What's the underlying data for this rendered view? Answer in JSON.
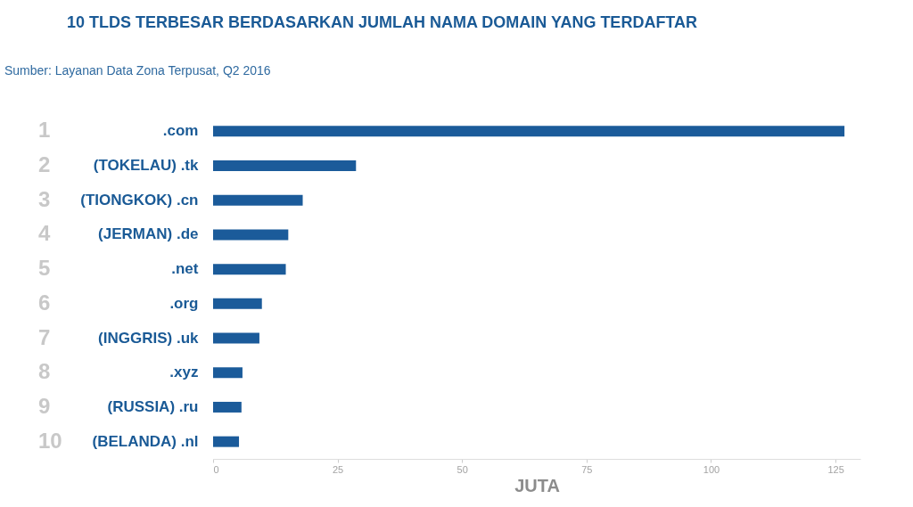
{
  "chart_data": {
    "type": "bar",
    "orientation": "horizontal",
    "title": "10 TLDS TERBESAR BERDASARKAN JUMLAH NAMA DOMAIN YANG TERDAFTAR",
    "xlabel": "JUTA",
    "categories": [
      ".com",
      "(TOKELAU) .tk",
      "(TIONGKOK) .cn",
      "(JERMAN) .de",
      ".net",
      ".org",
      "(INGGRIS) .uk",
      ".xyz",
      "(RUSSIA) .ru",
      "(BELANDA) .nl"
    ],
    "values": [
      126.8,
      28.7,
      18.0,
      15.1,
      14.6,
      9.8,
      9.3,
      5.9,
      5.7,
      5.2
    ],
    "color": "#1b5b9a",
    "xlim": [
      0,
      130
    ],
    "xticks": [
      0,
      25,
      50,
      75,
      100,
      125
    ],
    "annotations": [
      "Sumber: Layanan Data Zona Terpusat, Q2 2016",
      "1",
      "2",
      "3",
      "4",
      "5",
      "6",
      "7",
      "8",
      "9",
      "10"
    ]
  }
}
